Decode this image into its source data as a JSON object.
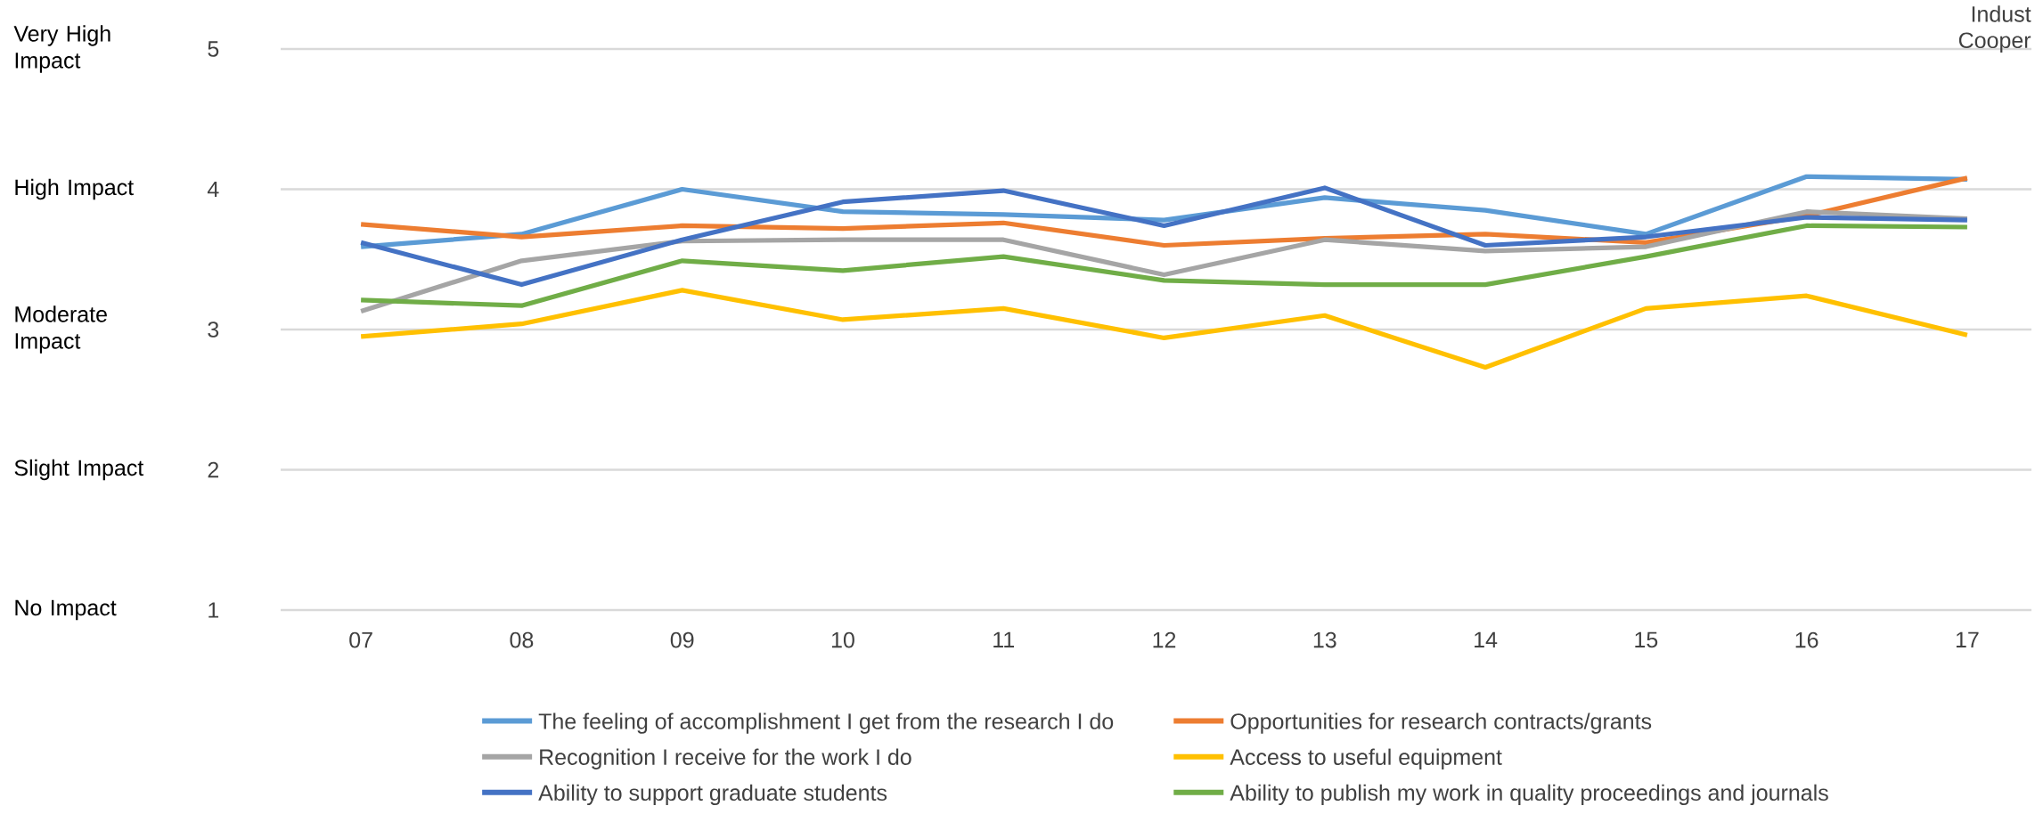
{
  "chart_data": {
    "type": "line",
    "categories": [
      "07",
      "08",
      "09",
      "10",
      "11",
      "12",
      "13",
      "14",
      "15",
      "16",
      "17"
    ],
    "series": [
      {
        "name": "The feeling of accomplishment I get from the research I do",
        "color": "#5b9bd5",
        "values": [
          3.59,
          3.68,
          4.0,
          3.84,
          3.82,
          3.78,
          3.94,
          3.85,
          3.68,
          4.09,
          4.07
        ]
      },
      {
        "name": "Opportunities for research contracts/grants",
        "color": "#ed7d31",
        "values": [
          3.75,
          3.66,
          3.74,
          3.72,
          3.76,
          3.6,
          3.65,
          3.68,
          3.62,
          3.81,
          4.08
        ]
      },
      {
        "name": "Recognition I receive for the work I do",
        "color": "#a5a5a5",
        "values": [
          3.13,
          3.49,
          3.63,
          3.64,
          3.64,
          3.39,
          3.64,
          3.56,
          3.59,
          3.84,
          3.79
        ]
      },
      {
        "name": "Access to useful equipment",
        "color": "#ffc000",
        "values": [
          2.95,
          3.04,
          3.28,
          3.07,
          3.15,
          2.94,
          3.1,
          2.73,
          3.15,
          3.24,
          2.96
        ]
      },
      {
        "name": "Ability to support graduate students",
        "color": "#4472c4",
        "values": [
          3.62,
          3.32,
          3.64,
          3.91,
          3.99,
          3.74,
          4.01,
          3.6,
          3.66,
          3.8,
          3.78
        ]
      },
      {
        "name": "Ability to publish my work in quality proceedings and journals",
        "color": "#70ad47",
        "values": [
          3.21,
          3.17,
          3.49,
          3.42,
          3.52,
          3.35,
          3.32,
          3.32,
          3.52,
          3.74,
          3.73
        ]
      }
    ],
    "ylim": [
      1,
      5
    ],
    "yticks": [
      1,
      2,
      3,
      4,
      5
    ],
    "annotations": [
      "No Impact",
      "Slight Impact",
      "Moderate Impact",
      "High Impact",
      "Very High Impact",
      "Indust",
      "Cooper"
    ],
    "grid": "y",
    "legend": "bottom",
    "marker": "none",
    "line_style": "solid"
  }
}
